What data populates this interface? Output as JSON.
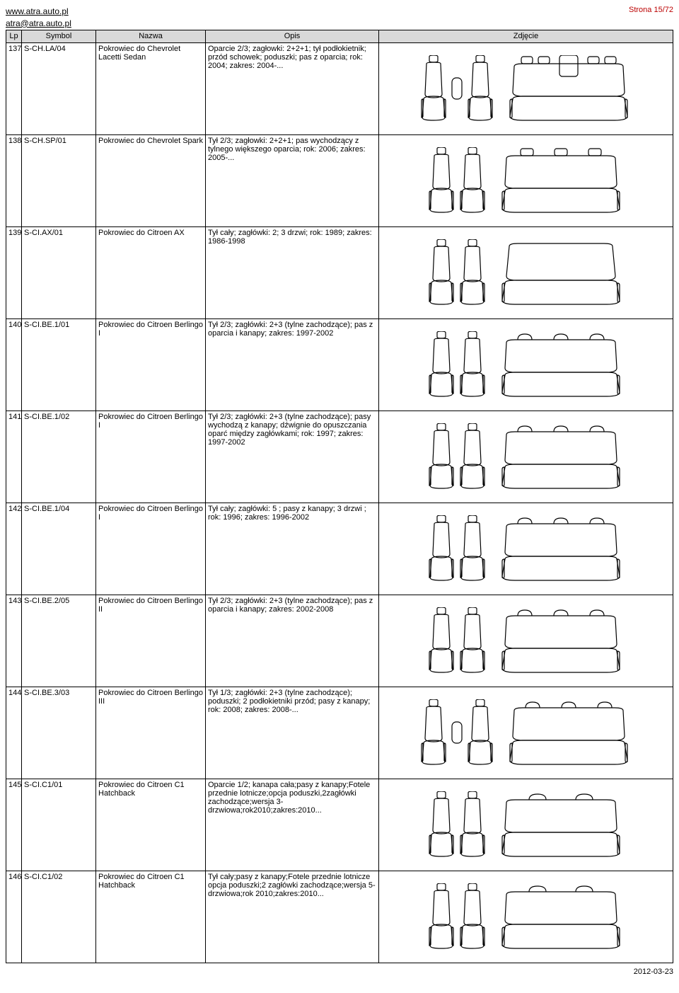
{
  "header": {
    "website": "www.atra.auto.pl",
    "email": "atra@atra.auto.pl",
    "page_label": "Strona 15/72"
  },
  "columns": {
    "lp": "Lp",
    "symbol": "Symbol",
    "nazwa": "Nazwa",
    "opis": "Opis",
    "zdjecie": "Zdjęcie"
  },
  "rows": [
    {
      "lp": "137",
      "symbol": "S-CH.LA/04",
      "nazwa": "Pokrowiec do Chevrolet Lacetti Sedan",
      "opis": "Oparcie 2/3; zagłowki: 2+2+1; tył podłokietnik; przód schowek; poduszki; pas z oparcia; rok: 2004; zakres: 2004-...",
      "front_type": "seats_with_box",
      "rear_type": "bench_armrest_5hr"
    },
    {
      "lp": "138",
      "symbol": "S-CH.SP/01",
      "nazwa": "Pokrowiec do Chevrolet Spark",
      "opis": "Tył 2/3; zagłowki: 2+2+1; pas wychodzący z tylnego większego oparcia; rok: 2006; zakres: 2005-...",
      "front_type": "seats_plain",
      "rear_type": "bench_3hr"
    },
    {
      "lp": "139",
      "symbol": "S-CI.AX/01",
      "nazwa": "Pokrowiec do Citroen AX",
      "opis": "Tył cały; zagłówki: 2; 3 drzwi; rok: 1989; zakres: 1986-1998",
      "front_type": "seats_plain",
      "rear_type": "bench_no_hr"
    },
    {
      "lp": "140",
      "symbol": "S-CI.BE.1/01",
      "nazwa": "Pokrowiec do Citroen Berlingo I",
      "opis": "Tył 2/3; zagłówki: 2+3 (tylne zachodzące); pas z oparcia i kanapy; zakres: 1997-2002",
      "front_type": "seats_plain",
      "rear_type": "bench_3hr_over"
    },
    {
      "lp": "141",
      "symbol": "S-CI.BE.1/02",
      "nazwa": "Pokrowiec do Citroen Berlingo I",
      "opis": "Tył 2/3; zagłówki: 2+3 (tylne zachodzące); pasy wychodzą z kanapy; dźwignie do opuszczania oparć między zagłówkami; rok: 1997; zakres: 1997-2002",
      "front_type": "seats_plain",
      "rear_type": "bench_3hr_over"
    },
    {
      "lp": "142",
      "symbol": "S-CI.BE.1/04",
      "nazwa": "Pokrowiec do Citroen Berlingo I",
      "opis": "Tył cały; zagłówki: 5 ; pasy z kanapy;   3 drzwi ; rok: 1996; zakres: 1996-2002",
      "front_type": "seats_plain",
      "rear_type": "bench_3hr_over"
    },
    {
      "lp": "143",
      "symbol": "S-CI.BE.2/05",
      "nazwa": "Pokrowiec do Citroen Berlingo II",
      "opis": "Tył 2/3; zagłówki: 2+3 (tylne zachodzące); pas z oparcia i kanapy; zakres: 2002-2008",
      "front_type": "seats_plain",
      "rear_type": "bench_3hr_over"
    },
    {
      "lp": "144",
      "symbol": "S-CI.BE.3/03",
      "nazwa": "Pokrowiec do Citroen Berlingo III",
      "opis": "Tył 1/3; zagłówki: 2+3 (tylne zachodzące); poduszki; 2 podłokietniki przód; pasy z kanapy; rok: 2008; zakres: 2008-...",
      "front_type": "seats_with_box",
      "rear_type": "bench_3hr_over"
    },
    {
      "lp": "145",
      "symbol": "S-CI.C1/01",
      "nazwa": "Pokrowiec do Citroen C1 Hatchback",
      "opis": "Oparcie 1/2; kanapa cała;pasy z kanapy;Fotele przednie lotnicze;opcja poduszki,2zagłówki zachodzące;wersja 3-drzwiowa;rok2010;zakres:2010...",
      "front_type": "seats_plain",
      "rear_type": "bench_2hr_over"
    },
    {
      "lp": "146",
      "symbol": "S-CI.C1/02",
      "nazwa": "Pokrowiec do Citroen C1 Hatchback",
      "opis": "Tył cały;pasy z kanapy;Fotele przednie lotnicze opcja poduszki;2 zagłówki zachodzące;wersja 5-drzwiowa;rok 2010;zakres:2010...",
      "front_type": "seats_plain",
      "rear_type": "bench_2hr_over"
    }
  ],
  "footer": {
    "date": "2012-03-23"
  },
  "svg_defs": {
    "stroke": "#000000",
    "stroke_width": 1.2,
    "fill": "none"
  }
}
